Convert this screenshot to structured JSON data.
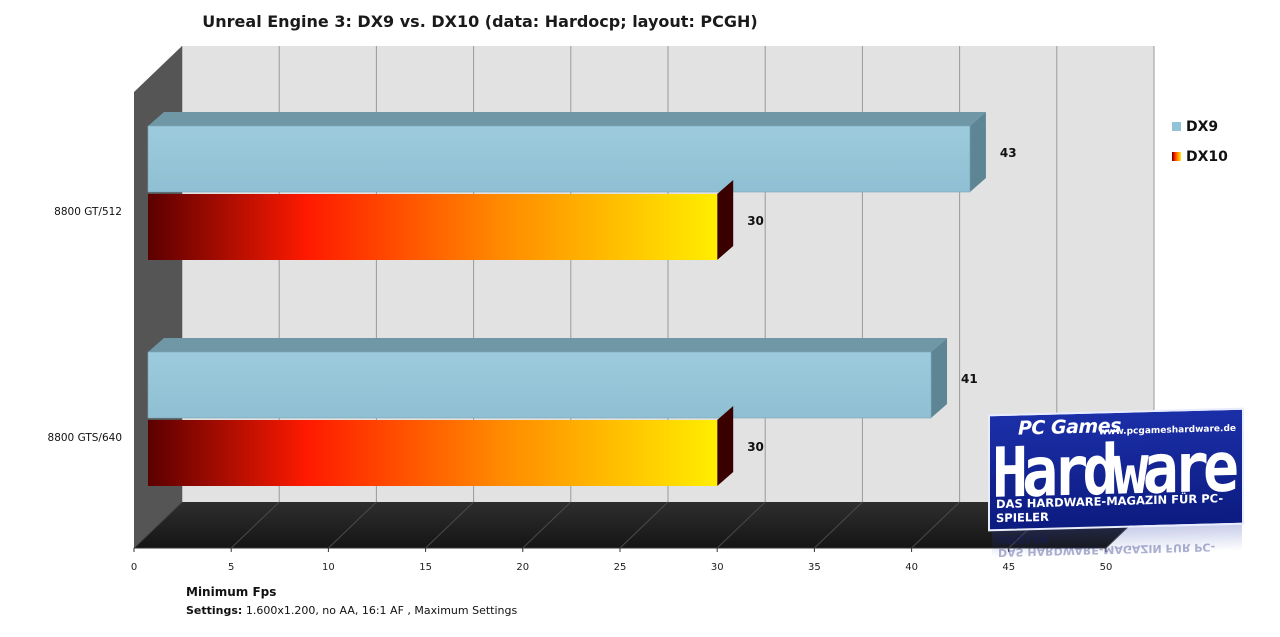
{
  "chart_data": {
    "type": "bar",
    "orientation": "horizontal",
    "title": "Unreal Engine 3: DX9 vs. DX10 (data: Hardocp; layout: PCGH)",
    "xlabel": "Minimum Fps",
    "settings_label": "Settings:",
    "settings_text": " 1.600x1.200, no AA, 16:1 AF , Maximum Settings",
    "categories": [
      "8800 GT/512",
      "8800 GTS/640"
    ],
    "series": [
      {
        "name": "DX9",
        "values": [
          43,
          41
        ]
      },
      {
        "name": "DX10",
        "values": [
          30,
          30
        ]
      }
    ],
    "xlim": [
      0,
      50
    ],
    "xticks": [
      0,
      5,
      10,
      15,
      20,
      25,
      30,
      35,
      40,
      45,
      50
    ],
    "grid": true,
    "legend_position": "right",
    "colors": {
      "dx9_face": "#93c3d6",
      "dx9_top": "#6f97a6",
      "dx9_side": "#5e8593",
      "dx10_start": "#5a0000",
      "dx10_mid": "#ff1a00",
      "dx10_end": "#ffee00",
      "wall": "#e2e2e2",
      "floor": "#232323",
      "side_wall": "#555555"
    }
  },
  "logo": {
    "top": "PC Games",
    "main": "Hardware",
    "url": "www.pcgameshardware.de",
    "subtitle": "DAS HARDWARE-MAGAZIN FÜR PC-SPIELER"
  }
}
